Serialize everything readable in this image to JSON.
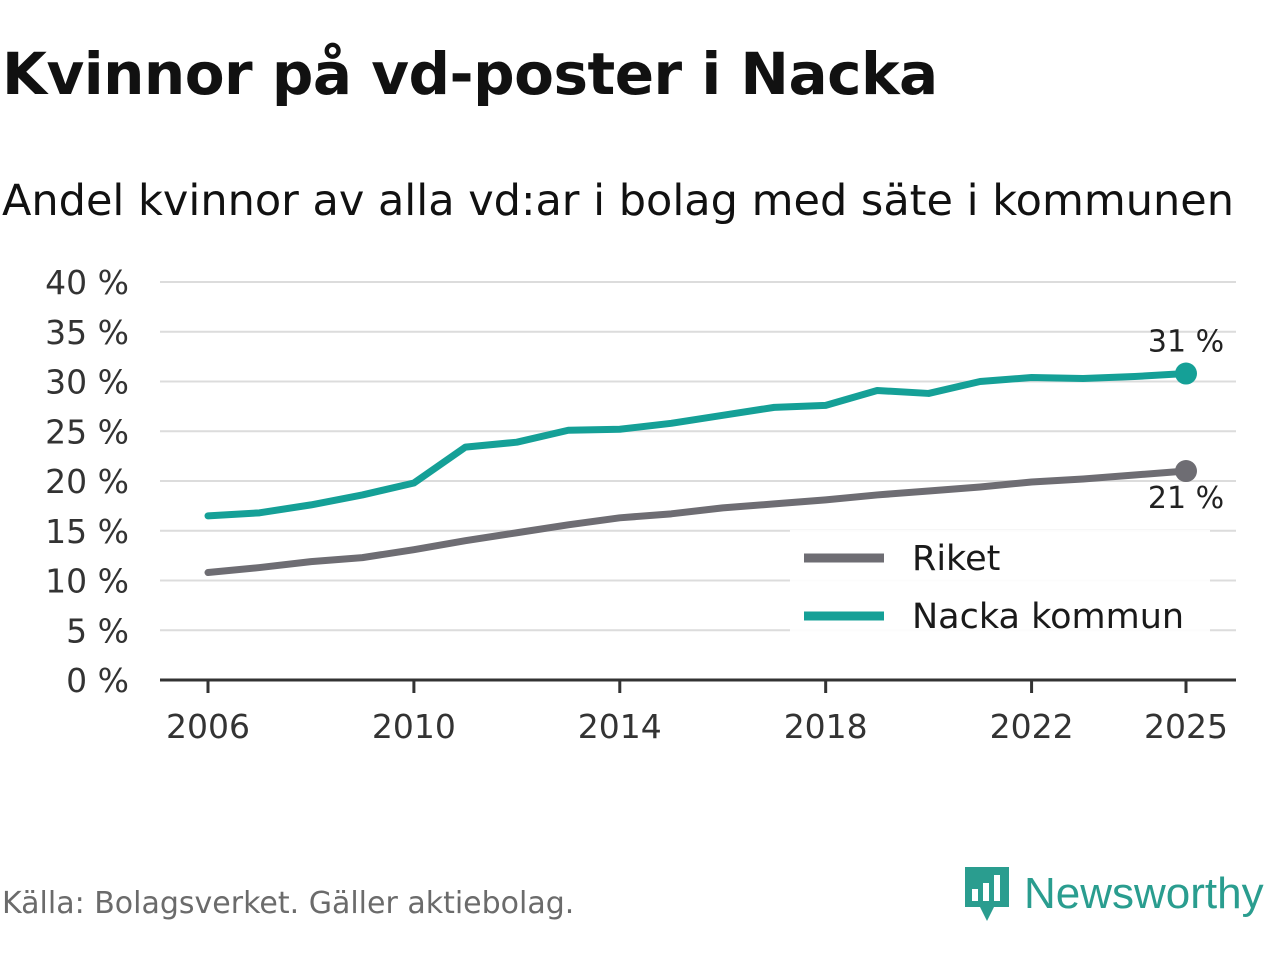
{
  "title": "Kvinnor på vd-poster i Nacka",
  "subtitle": "Andel kvinnor av alla vd:ar i bolag med säte i kommunen",
  "source": "Källa: Bolagsverket. Gäller aktiebolag.",
  "brand": {
    "name": "Newsworthy",
    "icon": "newsworthy-logo-icon",
    "color": "#2a9d8f"
  },
  "chart_data": {
    "type": "line",
    "x": [
      2006,
      2007,
      2008,
      2009,
      2010,
      2011,
      2012,
      2013,
      2014,
      2015,
      2016,
      2017,
      2018,
      2019,
      2020,
      2021,
      2022,
      2023,
      2024,
      2025
    ],
    "series": [
      {
        "name": "Riket",
        "color": "#6e6d73",
        "values": [
          10.8,
          11.3,
          11.9,
          12.3,
          13.1,
          14.0,
          14.8,
          15.6,
          16.3,
          16.7,
          17.3,
          17.7,
          18.1,
          18.6,
          19.0,
          19.4,
          19.9,
          20.2,
          20.6,
          21.0
        ]
      },
      {
        "name": "Nacka kommun",
        "color": "#15a097",
        "values": [
          16.5,
          16.8,
          17.6,
          18.6,
          19.8,
          23.4,
          23.9,
          25.1,
          25.2,
          25.8,
          26.6,
          27.4,
          27.6,
          29.1,
          28.8,
          30.0,
          30.4,
          30.3,
          30.5,
          30.8
        ]
      }
    ],
    "end_labels": [
      {
        "series": "Nacka kommun",
        "text": "31 %"
      },
      {
        "series": "Riket",
        "text": "21 %"
      }
    ],
    "y_ticks": [
      0,
      5,
      10,
      15,
      20,
      25,
      30,
      35,
      40
    ],
    "y_tick_labels": [
      "0 %",
      "5 %",
      "10 %",
      "15 %",
      "20 %",
      "25 %",
      "30 %",
      "35 %",
      "40 %"
    ],
    "x_ticks": [
      2006,
      2010,
      2014,
      2018,
      2022,
      2025
    ],
    "x_tick_labels": [
      "2006",
      "2010",
      "2014",
      "2018",
      "2022",
      "2025"
    ],
    "ylim": [
      0,
      40
    ],
    "xlim": [
      2006,
      2025
    ],
    "xlabel": "",
    "ylabel": "",
    "grid": true,
    "legend_position": "bottom-right"
  }
}
